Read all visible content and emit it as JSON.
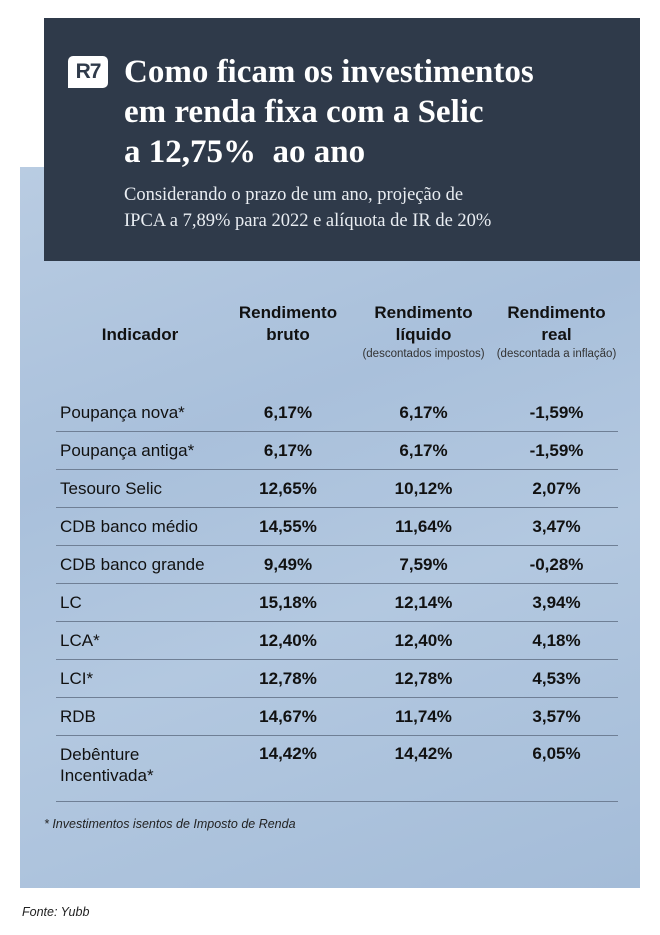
{
  "header": {
    "logo": "R7",
    "title_lines": [
      "Como ficam os investimentos",
      "em renda fixa com a Selic",
      "a 12,75%  ao ano"
    ],
    "subtitle_lines": [
      "Considerando o prazo de um ano, projeção de",
      "IPCA a 7,89% para 2022 e alíquota de IR de 20%"
    ]
  },
  "chart_data": {
    "type": "table",
    "columns": [
      {
        "line1": "Indicador",
        "line2": "",
        "note": ""
      },
      {
        "line1": "Rendimento",
        "line2": "bruto",
        "note": ""
      },
      {
        "line1": "Rendimento",
        "line2": "líquido",
        "note": "(descontados impostos)"
      },
      {
        "line1": "Rendimento",
        "line2": "real",
        "note": "(descontada a inflação)"
      }
    ],
    "rows": [
      {
        "name": [
          "Poupança nova*"
        ],
        "bruto": "6,17%",
        "liquido": "6,17%",
        "real": "-1,59%"
      },
      {
        "name": [
          "Poupança antiga*"
        ],
        "bruto": "6,17%",
        "liquido": "6,17%",
        "real": "-1,59%"
      },
      {
        "name": [
          "Tesouro Selic"
        ],
        "bruto": "12,65%",
        "liquido": "10,12%",
        "real": "2,07%"
      },
      {
        "name": [
          "CDB banco médio"
        ],
        "bruto": "14,55%",
        "liquido": "11,64%",
        "real": "3,47%"
      },
      {
        "name": [
          "CDB banco grande"
        ],
        "bruto": "9,49%",
        "liquido": "7,59%",
        "real": "-0,28%"
      },
      {
        "name": [
          "LC"
        ],
        "bruto": "15,18%",
        "liquido": "12,14%",
        "real": "3,94%"
      },
      {
        "name": [
          "LCA*"
        ],
        "bruto": "12,40%",
        "liquido": "12,40%",
        "real": "4,18%"
      },
      {
        "name": [
          "LCI*"
        ],
        "bruto": "12,78%",
        "liquido": "12,78%",
        "real": "4,53%"
      },
      {
        "name": [
          "RDB"
        ],
        "bruto": "14,67%",
        "liquido": "11,74%",
        "real": "3,57%"
      },
      {
        "name": [
          "Debênture",
          "Incentivada*"
        ],
        "bruto": "14,42%",
        "liquido": "14,42%",
        "real": "6,05%"
      }
    ]
  },
  "footnote": "* Investimentos isentos de Imposto de Renda",
  "source": "Fonte: Yubb"
}
